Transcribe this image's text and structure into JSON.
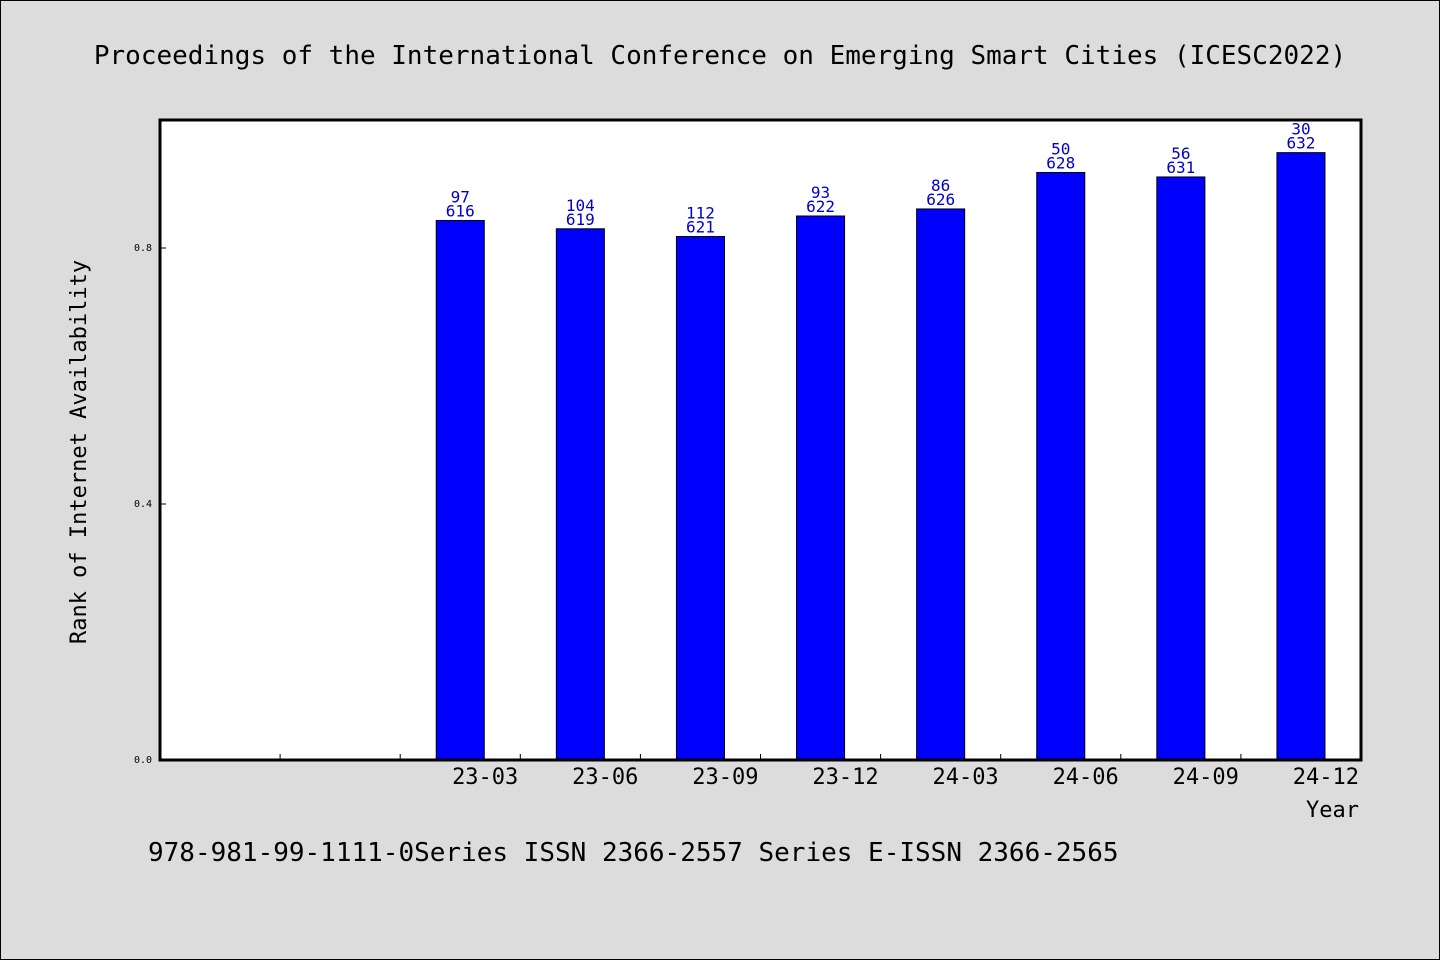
{
  "header": {
    "title": "Proceedings of the International Conference on Emerging Smart Cities (ICESC2022)"
  },
  "footer": {
    "text": "978-981-99-1111-0Series ISSN 2366-2557 Series E-ISSN 2366-2565"
  },
  "chart_data": {
    "type": "bar",
    "title": "Proceedings of the International Conference on Emerging Smart Cities (ICESC2022)",
    "xlabel": "Year",
    "ylabel": "Rank of Internet Availability",
    "ylim": [
      0,
      1.0
    ],
    "yticks": [
      0.0,
      0.4,
      0.8
    ],
    "ytick_labels": [
      "0.0",
      "0.4",
      "0.8"
    ],
    "categories": [
      "",
      "",
      "23-03",
      "23-06",
      "23-09",
      "23-12",
      "24-03",
      "24-06",
      "24-09",
      "24-12"
    ],
    "values": [
      null,
      null,
      0.843,
      0.83,
      0.818,
      0.85,
      0.861,
      0.918,
      0.911,
      0.949
    ],
    "labels_top": [
      "",
      "",
      "97",
      "104",
      "112",
      "93",
      "86",
      "50",
      "56",
      "30"
    ],
    "labels_bottom": [
      "",
      "",
      "616",
      "619",
      "621",
      "622",
      "626",
      "628",
      "631",
      "632"
    ],
    "grid": false,
    "legend": "none",
    "colors": {
      "bar": "#0000ff",
      "label": "#0000cc",
      "axis": "#000000",
      "background": "#dcdcdc",
      "plot_background": "#ffffff"
    }
  }
}
